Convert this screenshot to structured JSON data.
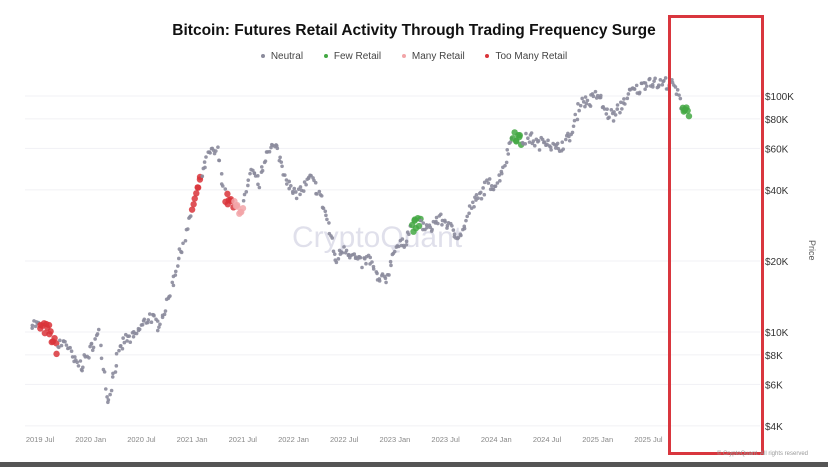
{
  "chart_data": {
    "type": "scatter",
    "title": "Bitcoin: Futures Retail Activity Through Trading Frequency Surge",
    "ylabel": "Price",
    "yscale": "log",
    "ylim": [
      4000,
      130000
    ],
    "xlim": [
      "2019-06",
      "2025-12"
    ],
    "grid": "horizontal",
    "legend_placement": "top",
    "y_ticks": [
      {
        "value": 4000,
        "label": "$4K"
      },
      {
        "value": 6000,
        "label": "$6K"
      },
      {
        "value": 8000,
        "label": "$8K"
      },
      {
        "value": 10000,
        "label": "$10K"
      },
      {
        "value": 20000,
        "label": "$20K"
      },
      {
        "value": 40000,
        "label": "$40K"
      },
      {
        "value": 60000,
        "label": "$60K"
      },
      {
        "value": 80000,
        "label": "$80K"
      },
      {
        "value": 100000,
        "label": "$100K"
      }
    ],
    "x_ticks": [
      {
        "value": "2019-07",
        "label": "2019 Jul"
      },
      {
        "value": "2020-01",
        "label": "2020 Jan"
      },
      {
        "value": "2020-07",
        "label": "2020 Jul"
      },
      {
        "value": "2021-01",
        "label": "2021 Jan"
      },
      {
        "value": "2021-07",
        "label": "2021 Jul"
      },
      {
        "value": "2022-01",
        "label": "2022 Jan"
      },
      {
        "value": "2022-07",
        "label": "2022 Jul"
      },
      {
        "value": "2023-01",
        "label": "2023 Jan"
      },
      {
        "value": "2023-07",
        "label": "2023 Jul"
      },
      {
        "value": "2024-01",
        "label": "2024 Jan"
      },
      {
        "value": "2024-07",
        "label": "2024 Jul"
      },
      {
        "value": "2025-01",
        "label": "2025 Jan"
      },
      {
        "value": "2025-07",
        "label": "2025 Jul"
      }
    ],
    "series": [
      {
        "name": "Neutral",
        "color": "#8b8b9c"
      },
      {
        "name": "Few Retail",
        "color": "#43a843"
      },
      {
        "name": "Many Retail",
        "color": "#f2a5a8"
      },
      {
        "name": "Too Many Retail",
        "color": "#d9343a"
      }
    ],
    "price": [
      [
        "2019-06",
        11000
      ],
      [
        "2019-07",
        10500
      ],
      [
        "2019-08",
        10200
      ],
      [
        "2019-09",
        8500
      ],
      [
        "2019-10",
        9200
      ],
      [
        "2019-11",
        7500
      ],
      [
        "2019-12",
        7200
      ],
      [
        "2020-01",
        8500
      ],
      [
        "2020-02",
        9800
      ],
      [
        "2020-03",
        5000
      ],
      [
        "2020-04",
        7500
      ],
      [
        "2020-05",
        9300
      ],
      [
        "2020-06",
        9400
      ],
      [
        "2020-07",
        10500
      ],
      [
        "2020-08",
        11700
      ],
      [
        "2020-09",
        10700
      ],
      [
        "2020-10",
        13000
      ],
      [
        "2020-11",
        18000
      ],
      [
        "2020-12",
        24000
      ],
      [
        "2021-01",
        33000
      ],
      [
        "2021-02",
        45000
      ],
      [
        "2021-03",
        57000
      ],
      [
        "2021-04",
        58000
      ],
      [
        "2021-05",
        37000
      ],
      [
        "2021-06",
        34000
      ],
      [
        "2021-07",
        33000
      ],
      [
        "2021-08",
        47000
      ],
      [
        "2021-09",
        43000
      ],
      [
        "2021-10",
        61000
      ],
      [
        "2021-11",
        60000
      ],
      [
        "2021-12",
        47000
      ],
      [
        "2022-01",
        38000
      ],
      [
        "2022-02",
        40000
      ],
      [
        "2022-03",
        45000
      ],
      [
        "2022-04",
        39000
      ],
      [
        "2022-05",
        30000
      ],
      [
        "2022-06",
        20000
      ],
      [
        "2022-07",
        23000
      ],
      [
        "2022-08",
        21000
      ],
      [
        "2022-09",
        19500
      ],
      [
        "2022-10",
        20500
      ],
      [
        "2022-11",
        16500
      ],
      [
        "2022-12",
        16800
      ],
      [
        "2023-01",
        23000
      ],
      [
        "2023-02",
        23500
      ],
      [
        "2023-03",
        28000
      ],
      [
        "2023-04",
        29000
      ],
      [
        "2023-05",
        27000
      ],
      [
        "2023-06",
        30000
      ],
      [
        "2023-07",
        29500
      ],
      [
        "2023-08",
        26000
      ],
      [
        "2023-09",
        26500
      ],
      [
        "2023-10",
        34000
      ],
      [
        "2023-11",
        37500
      ],
      [
        "2023-12",
        42500
      ],
      [
        "2024-01",
        42000
      ],
      [
        "2024-02",
        52000
      ],
      [
        "2024-03",
        70000
      ],
      [
        "2024-04",
        64000
      ],
      [
        "2024-05",
        67000
      ],
      [
        "2024-06",
        62000
      ],
      [
        "2024-07",
        66000
      ],
      [
        "2024-08",
        59000
      ],
      [
        "2024-09",
        63000
      ],
      [
        "2024-10",
        70000
      ],
      [
        "2024-11",
        96000
      ],
      [
        "2024-12",
        94000
      ],
      [
        "2025-01",
        102000
      ],
      [
        "2025-02",
        85000
      ],
      [
        "2025-03",
        82000
      ],
      [
        "2025-04",
        94000
      ],
      [
        "2025-05",
        105000
      ],
      [
        "2025-06",
        107000
      ],
      [
        "2025-07",
        118000
      ],
      [
        "2025-08",
        112000
      ],
      [
        "2025-09",
        114000
      ],
      [
        "2025-10",
        110000
      ],
      [
        "2025-11",
        90000
      ],
      [
        "2025-12",
        86000
      ]
    ],
    "retail_periods": [
      {
        "from": "2019-07",
        "to": "2019-09",
        "category": "Too Many Retail"
      },
      {
        "from": "2021-01",
        "to": "2021-02",
        "category": "Too Many Retail"
      },
      {
        "from": "2021-05",
        "to": "2021-06",
        "category": "Too Many Retail"
      },
      {
        "from": "2021-06",
        "to": "2021-07",
        "category": "Many Retail"
      },
      {
        "from": "2023-03",
        "to": "2023-04",
        "category": "Few Retail"
      },
      {
        "from": "2024-03",
        "to": "2024-04",
        "category": "Few Retail"
      },
      {
        "from": "2025-11",
        "to": "2025-12",
        "category": "Few Retail"
      }
    ]
  },
  "watermark": "CryptoQuant",
  "footer": "© CryptoQuant. All rights reserved",
  "annotation": {
    "type": "highlight-box",
    "color": "#d9363e",
    "from": "2025-01",
    "to": "2025-12"
  }
}
